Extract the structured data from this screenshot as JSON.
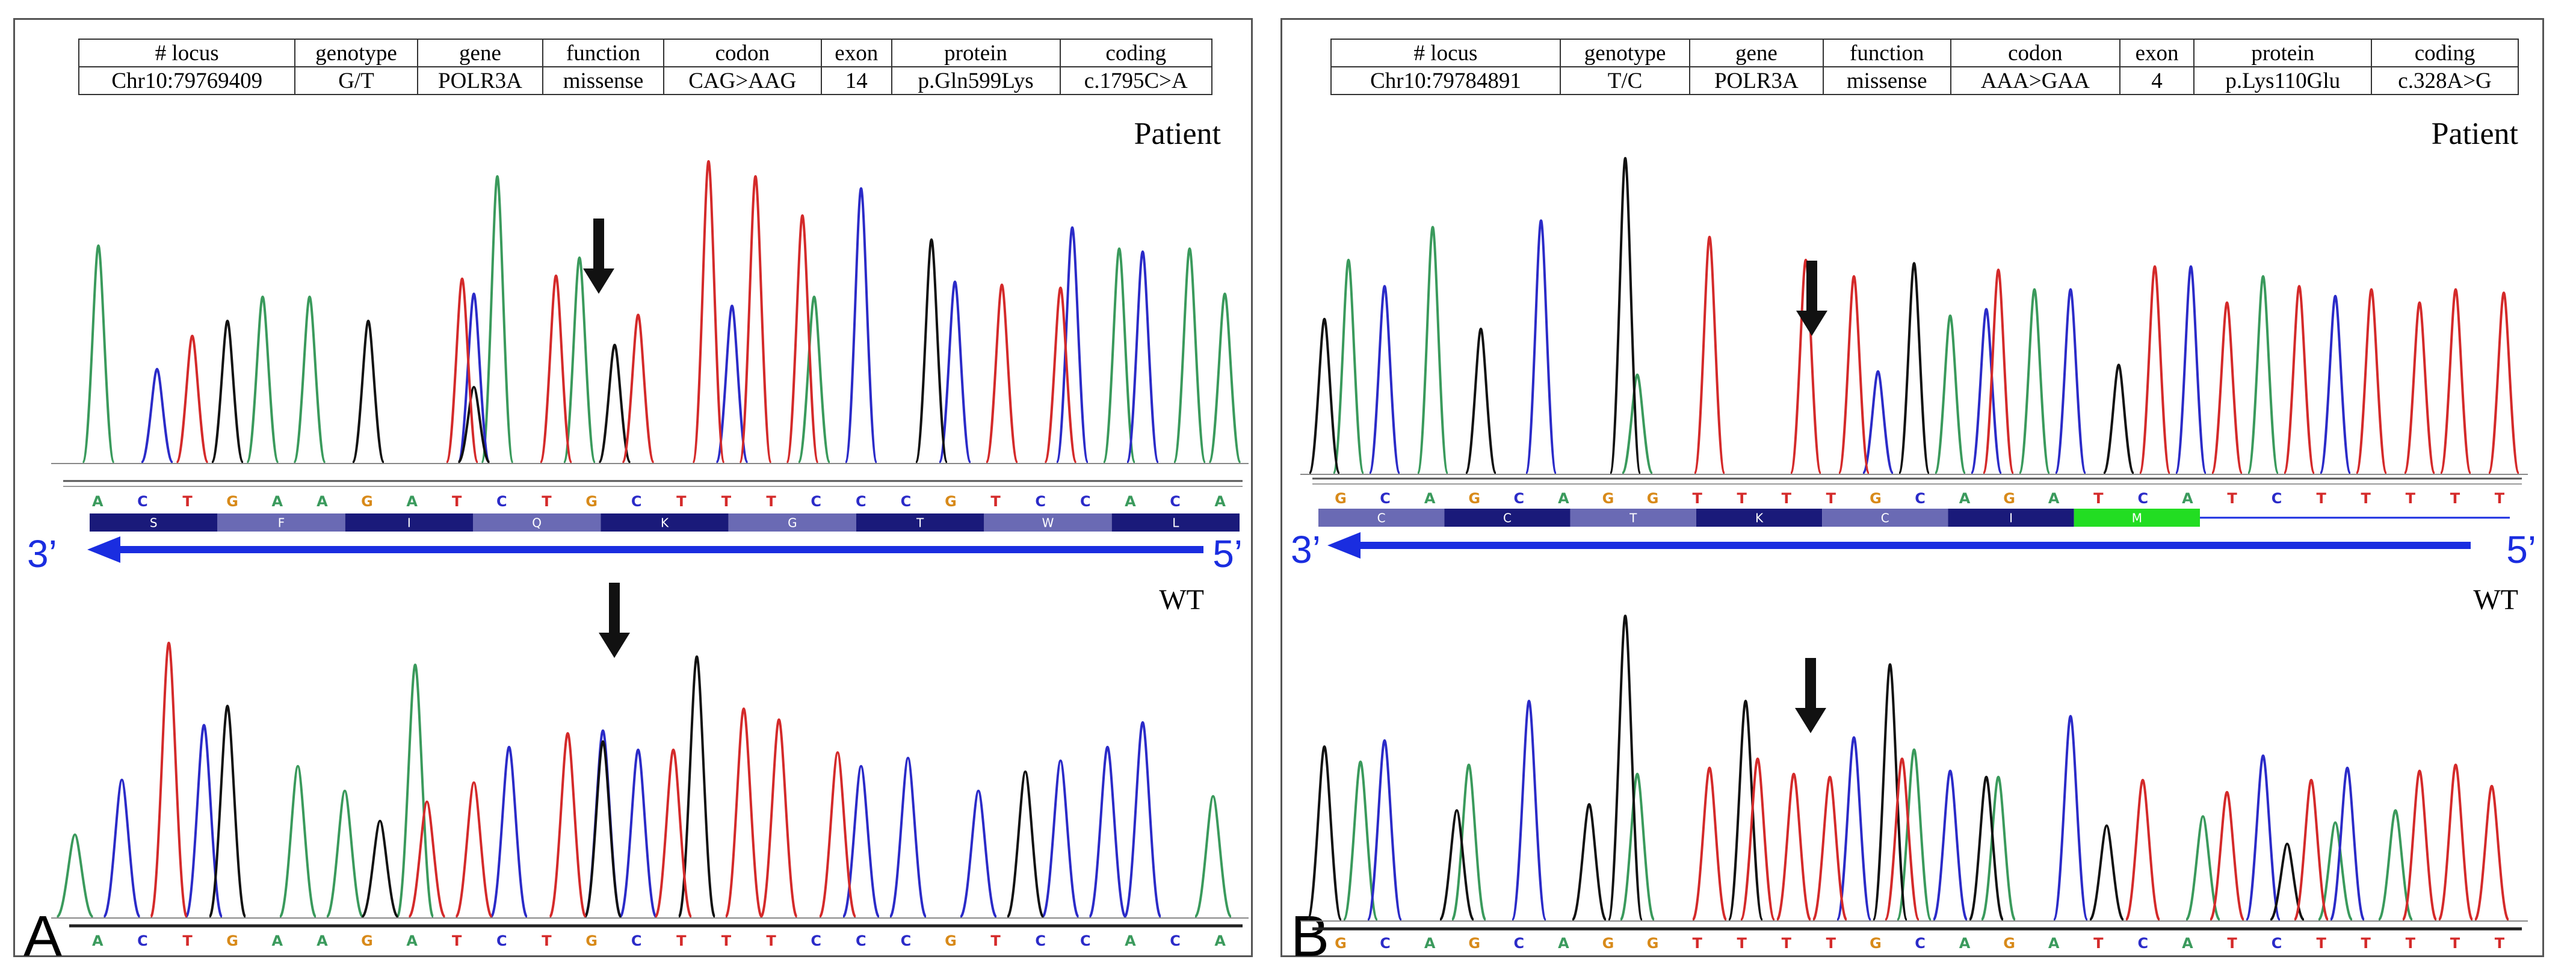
{
  "colors": {
    "A": "#3a9a5c",
    "C": "#2b2bc8",
    "G": "#111111",
    "T": "#d42a2a",
    "G_letter": "#d88a1a",
    "arrow": "#1a2de0",
    "codon_dark": "#1a1a7a",
    "codon_light": "#6a6ab4",
    "codon_green": "#22dd22"
  },
  "panels": [
    {
      "letter": "A",
      "table": {
        "headers": [
          "# locus",
          "genotype",
          "gene",
          "function",
          "codon",
          "exon",
          "protein",
          "coding"
        ],
        "values": [
          "Chr10:79769409",
          "G/T",
          "POLR3A",
          "missense",
          "CAG>AAG",
          "14",
          "p.Gln599Lys",
          "c.1795C>A"
        ]
      },
      "patient_label": "Patient",
      "wt_label": "WT",
      "strand_left": "3’",
      "strand_right": "5’",
      "patient_bases": [
        "A",
        "C",
        "T",
        "G",
        "A",
        "A",
        "G",
        "A",
        "T",
        "C",
        "T",
        "G",
        "C",
        "T",
        "T",
        "T",
        "C",
        "C",
        "C",
        "G",
        "T",
        "C",
        "C",
        "A",
        "C",
        "A"
      ],
      "wt_bases": [
        "A",
        "C",
        "T",
        "G",
        "A",
        "A",
        "G",
        "A",
        "T",
        "C",
        "T",
        "G",
        "C",
        "T",
        "T",
        "T",
        "C",
        "C",
        "C",
        "G",
        "T",
        "C",
        "C",
        "A",
        "C",
        "A"
      ],
      "amino_acids": [
        "S",
        "F",
        "I",
        "Q",
        "K",
        "G",
        "T",
        "W",
        "L"
      ],
      "chart_data": [
        {
          "type": "line",
          "title": "Patient chromatogram",
          "series": [
            {
              "name": "A",
              "peaks": [
                [
                  0.03,
                  0.72
                ],
                [
                  0.17,
                  0.55
                ],
                [
                  0.21,
                  0.55
                ],
                [
                  0.37,
                  0.95
                ],
                [
                  0.44,
                  0.68
                ],
                [
                  0.64,
                  0.55
                ],
                [
                  0.9,
                  0.71
                ],
                [
                  0.96,
                  0.71
                ],
                [
                  0.99,
                  0.56
                ]
              ]
            },
            {
              "name": "C",
              "peaks": [
                [
                  0.08,
                  0.31
                ],
                [
                  0.35,
                  0.56
                ],
                [
                  0.57,
                  0.52
                ],
                [
                  0.68,
                  0.91
                ],
                [
                  0.76,
                  0.6
                ],
                [
                  0.86,
                  0.78
                ],
                [
                  0.92,
                  0.7
                ]
              ]
            },
            {
              "name": "G",
              "peaks": [
                [
                  0.14,
                  0.47
                ],
                [
                  0.26,
                  0.47
                ],
                [
                  0.35,
                  0.25
                ],
                [
                  0.47,
                  0.39
                ],
                [
                  0.74,
                  0.74
                ]
              ]
            },
            {
              "name": "T",
              "peaks": [
                [
                  0.11,
                  0.42
                ],
                [
                  0.34,
                  0.61
                ],
                [
                  0.42,
                  0.62
                ],
                [
                  0.49,
                  0.49
                ],
                [
                  0.55,
                  1.0
                ],
                [
                  0.59,
                  0.95
                ],
                [
                  0.63,
                  0.82
                ],
                [
                  0.8,
                  0.59
                ],
                [
                  0.85,
                  0.58
                ]
              ]
            }
          ]
        },
        {
          "type": "line",
          "title": "WT chromatogram",
          "series": [
            {
              "name": "A",
              "peaks": [
                [
                  0.01,
                  0.3
                ],
                [
                  0.2,
                  0.55
                ],
                [
                  0.24,
                  0.46
                ],
                [
                  0.3,
                  0.92
                ],
                [
                  0.98,
                  0.44
                ]
              ]
            },
            {
              "name": "C",
              "peaks": [
                [
                  0.05,
                  0.5
                ],
                [
                  0.12,
                  0.7
                ],
                [
                  0.38,
                  0.62
                ],
                [
                  0.46,
                  0.68
                ],
                [
                  0.49,
                  0.61
                ],
                [
                  0.68,
                  0.55
                ],
                [
                  0.72,
                  0.58
                ],
                [
                  0.78,
                  0.46
                ],
                [
                  0.85,
                  0.57
                ],
                [
                  0.89,
                  0.62
                ],
                [
                  0.92,
                  0.71
                ]
              ]
            },
            {
              "name": "G",
              "peaks": [
                [
                  0.14,
                  0.77
                ],
                [
                  0.27,
                  0.35
                ],
                [
                  0.46,
                  0.64
                ],
                [
                  0.54,
                  0.95
                ],
                [
                  0.82,
                  0.53
                ]
              ]
            },
            {
              "name": "T",
              "peaks": [
                [
                  0.09,
                  1.0
                ],
                [
                  0.31,
                  0.42
                ],
                [
                  0.35,
                  0.49
                ],
                [
                  0.43,
                  0.67
                ],
                [
                  0.52,
                  0.61
                ],
                [
                  0.58,
                  0.76
                ],
                [
                  0.61,
                  0.72
                ],
                [
                  0.66,
                  0.6
                ]
              ]
            }
          ]
        }
      ]
    },
    {
      "letter": "B",
      "table": {
        "headers": [
          "# locus",
          "genotype",
          "gene",
          "function",
          "codon",
          "exon",
          "protein",
          "coding"
        ],
        "values": [
          "Chr10:79784891",
          "T/C",
          "POLR3A",
          "missense",
          "AAA>GAA",
          "4",
          "p.Lys110Glu",
          "c.328A>G"
        ]
      },
      "patient_label": "Patient",
      "wt_label": "WT",
      "strand_left": "3’",
      "strand_right": "5’",
      "patient_bases": [
        "G",
        "C",
        "A",
        "G",
        "C",
        "A",
        "G",
        "G",
        "T",
        "T",
        "T",
        "T",
        "G",
        "C",
        "A",
        "G",
        "A",
        "T",
        "C",
        "A",
        "T",
        "C",
        "T",
        "T",
        "T",
        "T",
        "T"
      ],
      "wt_bases": [
        "G",
        "C",
        "A",
        "G",
        "C",
        "A",
        "G",
        "G",
        "T",
        "T",
        "T",
        "T",
        "G",
        "C",
        "A",
        "G",
        "A",
        "T",
        "C",
        "A",
        "T",
        "C",
        "T",
        "T",
        "T",
        "T",
        "T"
      ],
      "amino_acids": [
        "C",
        "C",
        "T",
        "K",
        "C",
        "I",
        "M"
      ],
      "chart_data": [
        {
          "type": "line",
          "title": "Patient chromatogram",
          "series": [
            {
              "name": "A",
              "peaks": [
                [
                  0.03,
                  0.65
                ],
                [
                  0.1,
                  0.75
                ],
                [
                  0.27,
                  0.3
                ],
                [
                  0.53,
                  0.48
                ],
                [
                  0.6,
                  0.56
                ],
                [
                  0.79,
                  0.6
                ]
              ]
            },
            {
              "name": "C",
              "peaks": [
                [
                  0.06,
                  0.57
                ],
                [
                  0.19,
                  0.77
                ],
                [
                  0.47,
                  0.31
                ],
                [
                  0.56,
                  0.5
                ],
                [
                  0.63,
                  0.56
                ],
                [
                  0.73,
                  0.63
                ],
                [
                  0.85,
                  0.54
                ]
              ]
            },
            {
              "name": "G",
              "peaks": [
                [
                  0.01,
                  0.47
                ],
                [
                  0.14,
                  0.44
                ],
                [
                  0.26,
                  0.96
                ],
                [
                  0.5,
                  0.64
                ],
                [
                  0.67,
                  0.33
                ]
              ]
            },
            {
              "name": "T",
              "peaks": [
                [
                  0.33,
                  0.72
                ],
                [
                  0.41,
                  0.65
                ],
                [
                  0.45,
                  0.6
                ],
                [
                  0.57,
                  0.62
                ],
                [
                  0.7,
                  0.63
                ],
                [
                  0.76,
                  0.52
                ],
                [
                  0.82,
                  0.57
                ],
                [
                  0.88,
                  0.56
                ],
                [
                  0.92,
                  0.52
                ],
                [
                  0.95,
                  0.56
                ],
                [
                  0.99,
                  0.55
                ]
              ]
            }
          ]
        },
        {
          "type": "line",
          "title": "WT chromatogram",
          "series": [
            {
              "name": "A",
              "peaks": [
                [
                  0.04,
                  0.52
                ],
                [
                  0.13,
                  0.51
                ],
                [
                  0.27,
                  0.48
                ],
                [
                  0.5,
                  0.56
                ],
                [
                  0.57,
                  0.47
                ],
                [
                  0.74,
                  0.34
                ],
                [
                  0.85,
                  0.32
                ],
                [
                  0.9,
                  0.36
                ]
              ]
            },
            {
              "name": "C",
              "peaks": [
                [
                  0.06,
                  0.59
                ],
                [
                  0.18,
                  0.72
                ],
                [
                  0.45,
                  0.6
                ],
                [
                  0.53,
                  0.49
                ],
                [
                  0.63,
                  0.67
                ],
                [
                  0.79,
                  0.54
                ],
                [
                  0.86,
                  0.5
                ]
              ]
            },
            {
              "name": "G",
              "peaks": [
                [
                  0.01,
                  0.57
                ],
                [
                  0.12,
                  0.36
                ],
                [
                  0.23,
                  0.38
                ],
                [
                  0.26,
                  1.0
                ],
                [
                  0.36,
                  0.72
                ],
                [
                  0.48,
                  0.84
                ],
                [
                  0.56,
                  0.47
                ],
                [
                  0.66,
                  0.31
                ],
                [
                  0.81,
                  0.25
                ]
              ]
            },
            {
              "name": "T",
              "peaks": [
                [
                  0.33,
                  0.5
                ],
                [
                  0.37,
                  0.53
                ],
                [
                  0.4,
                  0.48
                ],
                [
                  0.43,
                  0.47
                ],
                [
                  0.49,
                  0.53
                ],
                [
                  0.69,
                  0.46
                ],
                [
                  0.76,
                  0.42
                ],
                [
                  0.83,
                  0.46
                ],
                [
                  0.92,
                  0.49
                ],
                [
                  0.95,
                  0.51
                ],
                [
                  0.98,
                  0.44
                ]
              ]
            }
          ]
        }
      ]
    }
  ]
}
